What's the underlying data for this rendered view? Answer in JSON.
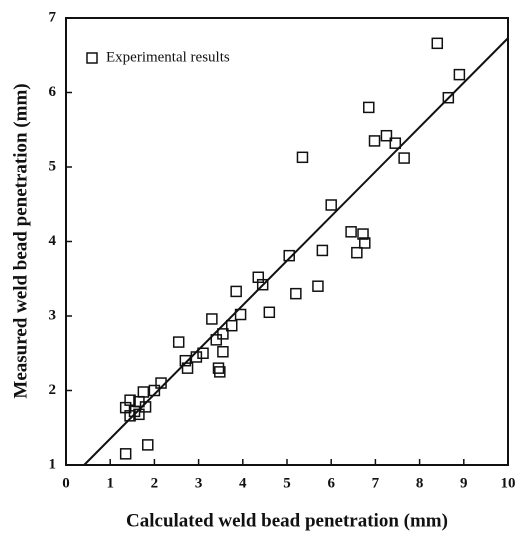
{
  "chart_data": {
    "type": "scatter",
    "xlabel": "Calculated weld bead penetration (mm)",
    "ylabel": "Measured weld bead penetration (mm)",
    "xlim": [
      0,
      10
    ],
    "ylim": [
      1,
      7
    ],
    "xticks": [
      0,
      1,
      2,
      3,
      4,
      5,
      6,
      7,
      8,
      9,
      10
    ],
    "yticks": [
      1,
      2,
      3,
      4,
      5,
      6,
      7
    ],
    "legend": "upper left",
    "series": [
      {
        "name": "Experimental results",
        "color": "#111111",
        "x": [
          8.4,
          8.9,
          8.65,
          6.85,
          5.35,
          7.25,
          6.98,
          7.45,
          7.65,
          6.0,
          5.05,
          5.8,
          6.45,
          6.72,
          6.76,
          6.58,
          5.7,
          5.2,
          4.35,
          4.45,
          3.85,
          4.6,
          3.95,
          3.3,
          3.75,
          3.55,
          3.4,
          2.55,
          3.1,
          3.55,
          2.95,
          2.7,
          2.75,
          3.45,
          3.48,
          2.15,
          2.0,
          1.75,
          1.45,
          1.65,
          1.8,
          1.35,
          1.55,
          1.65,
          1.45,
          1.85,
          1.35
        ],
        "values": [
          6.66,
          6.24,
          5.93,
          5.8,
          5.13,
          5.42,
          5.35,
          5.32,
          5.12,
          4.49,
          3.81,
          3.88,
          4.13,
          4.1,
          3.98,
          3.85,
          3.4,
          3.3,
          3.52,
          3.42,
          3.33,
          3.05,
          3.02,
          2.96,
          2.87,
          2.76,
          2.68,
          2.65,
          2.5,
          2.52,
          2.45,
          2.4,
          2.3,
          2.3,
          2.25,
          2.1,
          2.0,
          1.98,
          1.87,
          1.85,
          1.78,
          1.77,
          1.72,
          1.68,
          1.66,
          1.27,
          1.15
        ]
      }
    ],
    "fit_line": {
      "color": "#111111",
      "x": [
        0.41,
        10
      ],
      "values": [
        1,
        6.73
      ]
    }
  }
}
